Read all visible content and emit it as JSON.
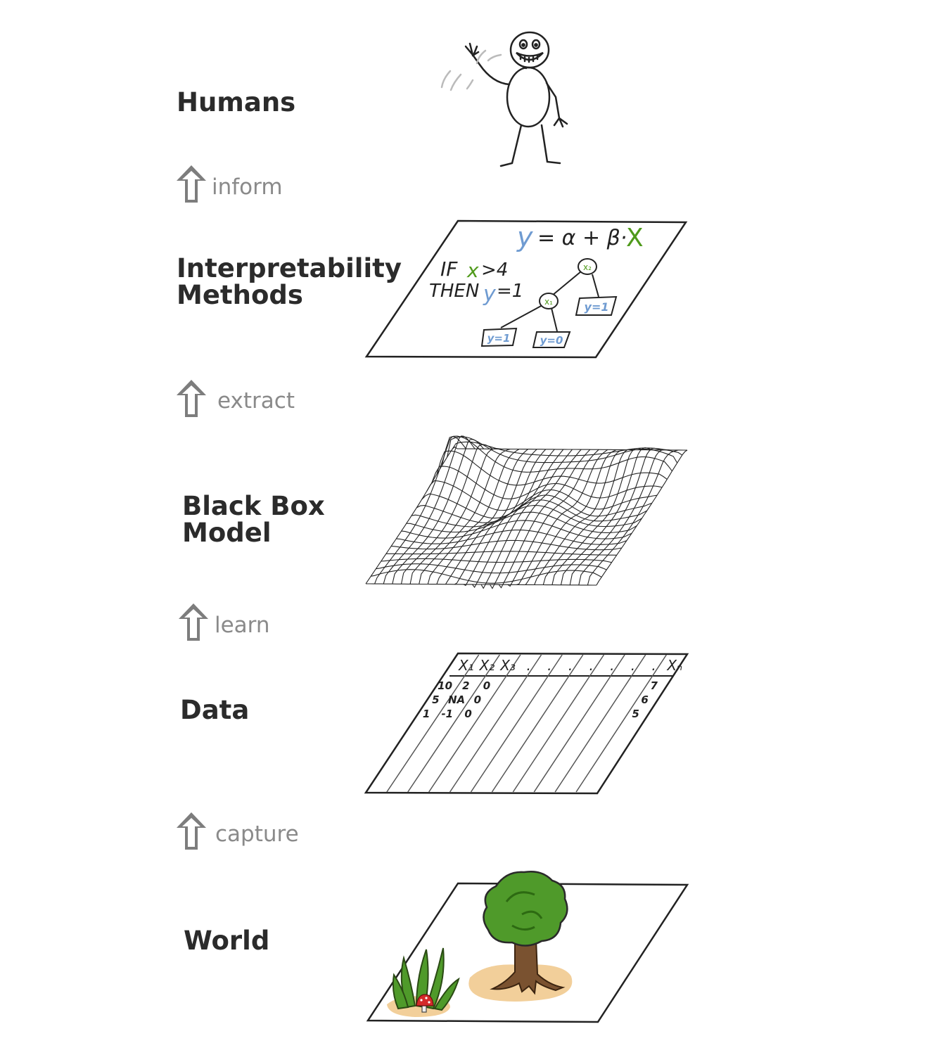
{
  "layers": {
    "humans": "Humans",
    "methods_line1": "Interpretability",
    "methods_line2": "Methods",
    "model_line1": "Black Box",
    "model_line2": "Model",
    "data": "Data",
    "world": "World"
  },
  "arrows": {
    "inform": "inform",
    "extract": "extract",
    "learn": "learn",
    "capture": "capture"
  },
  "methods_sketch": {
    "equation_y": "y",
    "equation_mid": "= α + β·",
    "equation_x": "X",
    "rule_if": "IF",
    "rule_x": "x",
    "rule_cond": ">4",
    "rule_then": "THEN",
    "rule_y": "y",
    "rule_val": "=1",
    "node_root": "x₂",
    "node_child": "x₁",
    "leaf_right": "y=1",
    "leaf_left": "y=1",
    "leaf_mid": "y=0"
  },
  "data_table": {
    "headers": [
      "X₁",
      "X₂",
      "X₃",
      ".",
      ".",
      ".",
      ".",
      ".",
      ".",
      ".",
      "Xₙ"
    ],
    "col1": [
      "10",
      "5",
      "1"
    ],
    "col2": [
      "2",
      "NA",
      "-1"
    ],
    "col3": [
      "0",
      "0",
      "0"
    ],
    "coln": [
      "7",
      "6",
      "5"
    ]
  },
  "colors": {
    "text": "#2b2b2b",
    "arrow": "#7d7d7d",
    "y_blue": "#6f9bd1",
    "x_green": "#4f9a1b",
    "tree_green": "#4f9a2a",
    "trunk": "#7a5230",
    "ground": "#f2cf9a"
  }
}
